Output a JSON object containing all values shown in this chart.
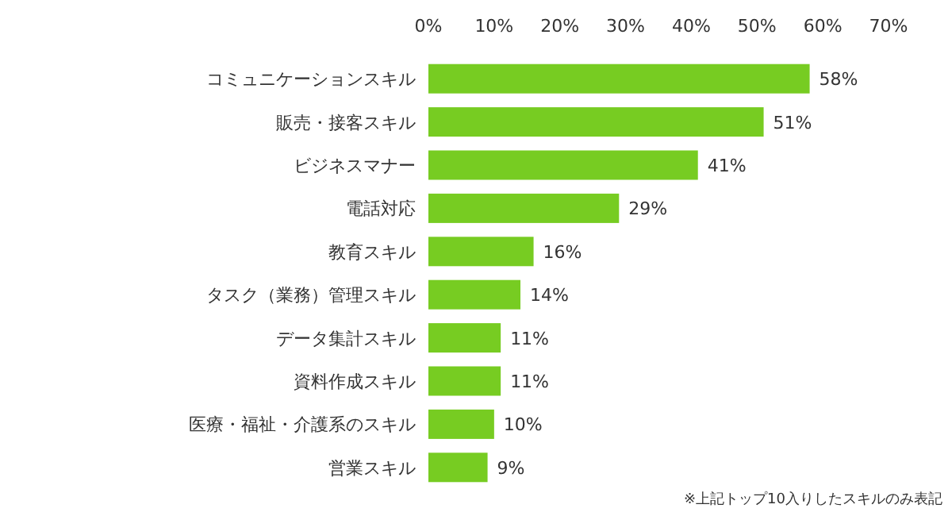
{
  "chart_data": {
    "type": "bar",
    "orientation": "horizontal",
    "categories": [
      "コミュニケーションスキル",
      "販売・接客スキル",
      "ビジネスマナー",
      "電話対応",
      "教育スキル",
      "タスク（業務）管理スキル",
      "データ集計スキル",
      "資料作成スキル",
      "医療・福祉・介護系のスキル",
      "営業スキル"
    ],
    "values": [
      58,
      51,
      41,
      29,
      16,
      14,
      11,
      11,
      10,
      9
    ],
    "value_labels": [
      "58%",
      "51%",
      "41%",
      "29%",
      "16%",
      "14%",
      "11%",
      "11%",
      "10%",
      "9%"
    ],
    "color": "#77cc22",
    "xlim": [
      0,
      70
    ],
    "xticks": [
      {
        "value": 0,
        "label": "0%"
      },
      {
        "value": 10,
        "label": "10%"
      },
      {
        "value": 20,
        "label": "20%"
      },
      {
        "value": 30,
        "label": "30%"
      },
      {
        "value": 40,
        "label": "40%"
      },
      {
        "value": 50,
        "label": "50%"
      },
      {
        "value": 60,
        "label": "60%"
      },
      {
        "value": 70,
        "label": "70%"
      }
    ],
    "annotations": [
      "※上記トップ10入りしたスキルのみ表記"
    ]
  }
}
